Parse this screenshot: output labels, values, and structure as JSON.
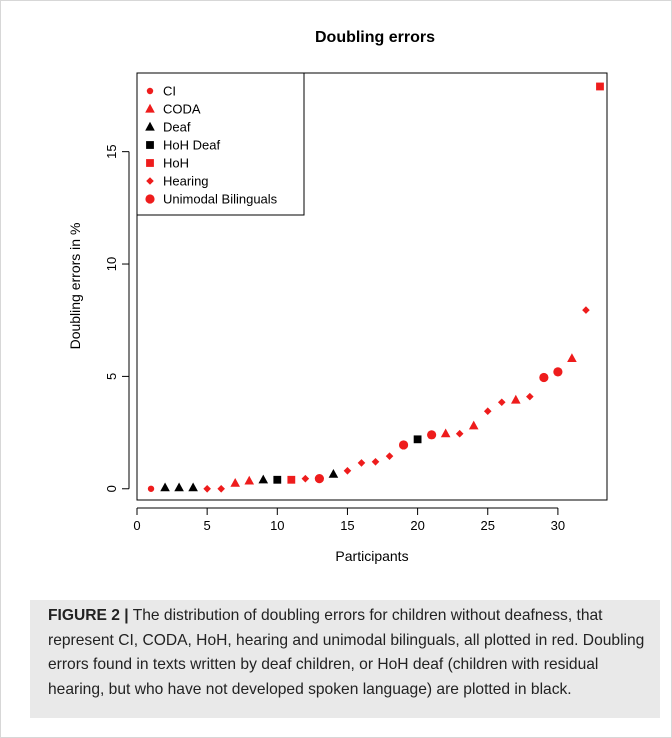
{
  "chart_data": {
    "type": "scatter",
    "title": "Doubling errors",
    "xlabel": "Participants",
    "ylabel": "Doubling errors in %",
    "xlim": [
      0,
      33.5
    ],
    "ylim": [
      -0.5,
      18.5
    ],
    "x_ticks": [
      "0",
      "5",
      "10",
      "15",
      "20",
      "25",
      "30"
    ],
    "y_ticks": [
      "0",
      "5",
      "10",
      "15"
    ],
    "legend_position": "top-left",
    "series": [
      {
        "name": "CI",
        "shape": "small-circle",
        "color": "#ee1c1c",
        "points": [
          [
            1,
            0.0
          ]
        ]
      },
      {
        "name": "CODA",
        "shape": "triangle",
        "color": "#ee1c1c",
        "points": [
          [
            7,
            0.25
          ],
          [
            8,
            0.35
          ],
          [
            22,
            2.45
          ],
          [
            24,
            2.8
          ],
          [
            27,
            3.95
          ],
          [
            31,
            5.8
          ]
        ]
      },
      {
        "name": "Deaf",
        "shape": "triangle",
        "color": "#000000",
        "points": [
          [
            2,
            0.05
          ],
          [
            3,
            0.05
          ],
          [
            4,
            0.05
          ],
          [
            9,
            0.4
          ],
          [
            14,
            0.65
          ]
        ]
      },
      {
        "name": "HoH Deaf",
        "shape": "square",
        "color": "#000000",
        "points": [
          [
            10,
            0.4
          ],
          [
            20,
            2.2
          ]
        ]
      },
      {
        "name": "HoH",
        "shape": "square",
        "color": "#ee1c1c",
        "points": [
          [
            11,
            0.4
          ],
          [
            33,
            17.9
          ]
        ]
      },
      {
        "name": "Hearing",
        "shape": "diamond",
        "color": "#ee1c1c",
        "points": [
          [
            5,
            0.0
          ],
          [
            6,
            0.0
          ],
          [
            12,
            0.45
          ],
          [
            15,
            0.8
          ],
          [
            16,
            1.15
          ],
          [
            17,
            1.2
          ],
          [
            18,
            1.45
          ],
          [
            23,
            2.45
          ],
          [
            25,
            3.45
          ],
          [
            26,
            3.85
          ],
          [
            28,
            4.1
          ],
          [
            32,
            7.95
          ]
        ]
      },
      {
        "name": "Unimodal Bilinguals",
        "shape": "circle",
        "color": "#ee1c1c",
        "points": [
          [
            13,
            0.45
          ],
          [
            19,
            1.95
          ],
          [
            21,
            2.4
          ],
          [
            29,
            4.95
          ],
          [
            30,
            5.2
          ]
        ]
      }
    ]
  },
  "caption": {
    "label": "FIGURE 2 |",
    "text": "The distribution of doubling errors for children without deafness, that represent CI, CODA, HoH, hearing and unimodal bilinguals, all plotted in red. Doubling errors found in texts written by deaf children, or HoH deaf (children with residual hearing, but who have not developed spoken language) are plotted in black."
  }
}
